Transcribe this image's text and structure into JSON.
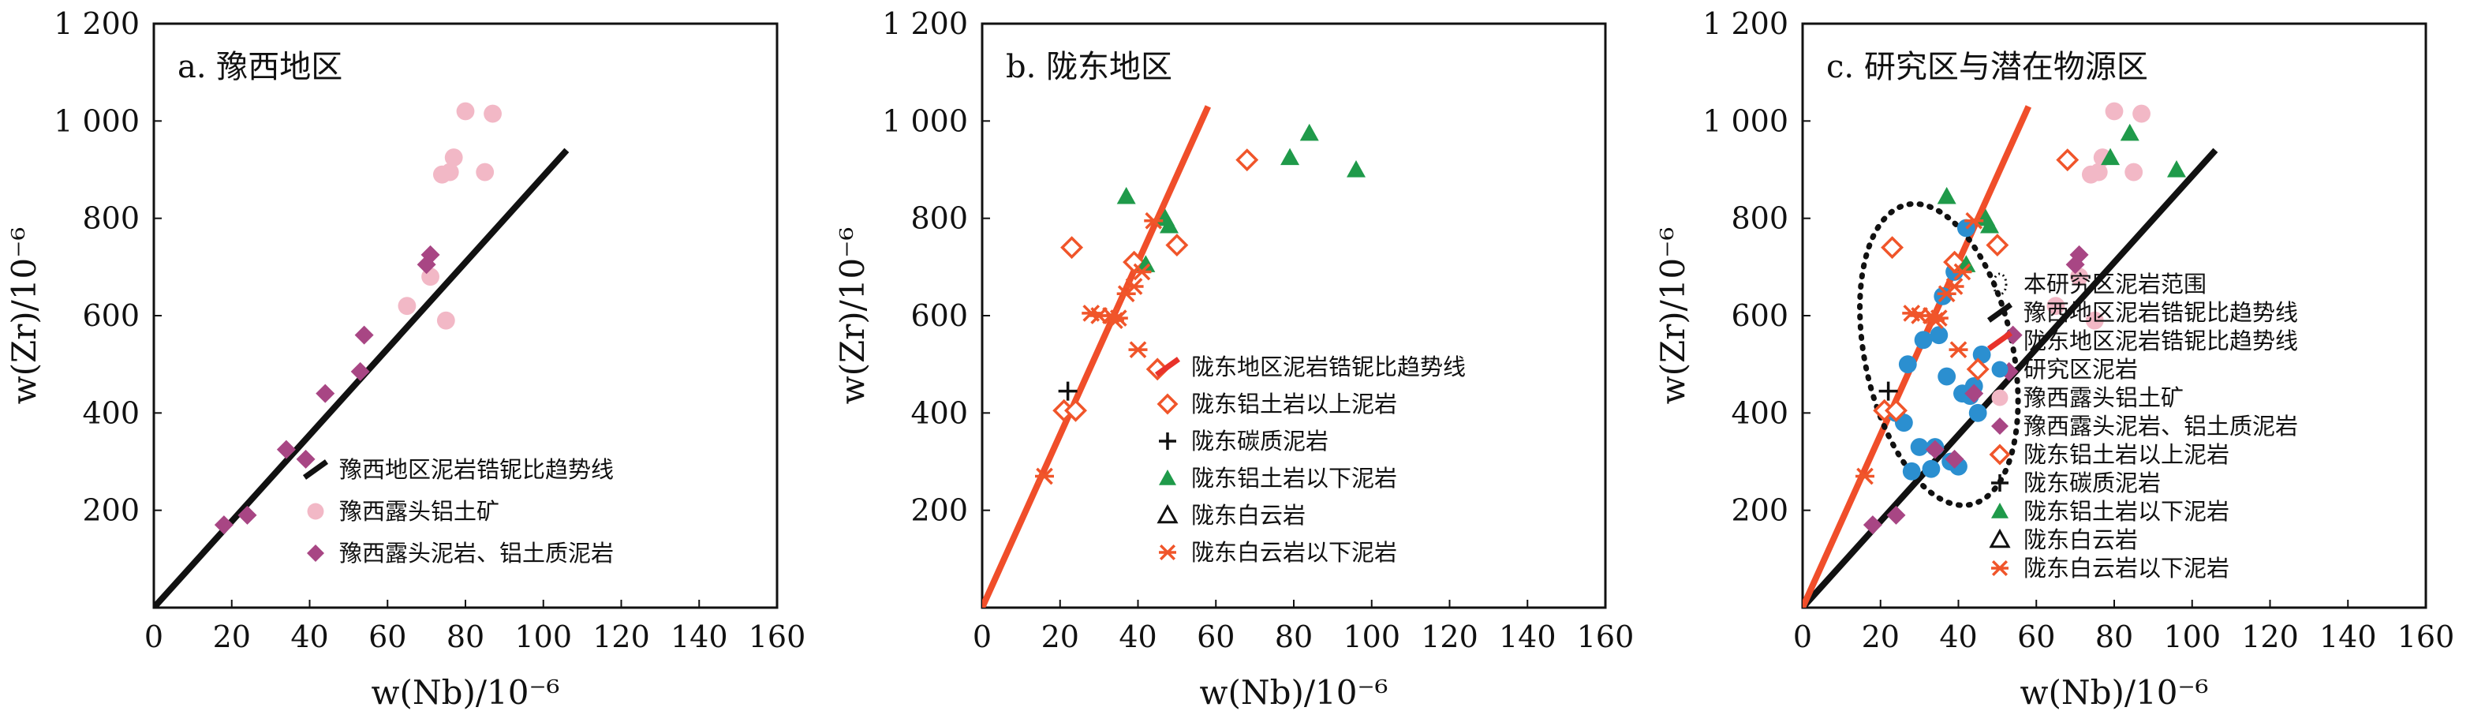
{
  "chart_data": [
    {
      "type": "scatter",
      "panel_title": "a. 豫西地区",
      "xlabel": "w(Nb)/10⁻⁶",
      "ylabel": "w(Zr)/10⁻⁶",
      "xlim": [
        0,
        160
      ],
      "ylim": [
        0,
        1200
      ],
      "x_ticks": [
        "0",
        "20",
        "40",
        "60",
        "80",
        "100",
        "120",
        "140",
        "160"
      ],
      "y_ticks": [
        "200",
        "400",
        "600",
        "800",
        "1 000",
        "1 200"
      ],
      "legend_position": "bottom-right",
      "legend": [
        {
          "label": "豫西地区泥岩锆铌比趋势线",
          "marker": "black-line"
        },
        {
          "label": "豫西露头铝土矿",
          "marker": "pink-circle"
        },
        {
          "label": "豫西露头泥岩、铝土质泥岩",
          "marker": "purple-diamond"
        }
      ],
      "series": [
        {
          "name": "豫西地区泥岩锆铌比趋势线",
          "kind": "line",
          "color": "#111111",
          "x": [
            0,
            106
          ],
          "y": [
            0,
            940
          ]
        },
        {
          "name": "豫西露头铝土矿",
          "kind": "points",
          "marker": "circle",
          "color": "#f2b8c6",
          "x": [
            80,
            87,
            77,
            76,
            85,
            74,
            71,
            65,
            75
          ],
          "y": [
            1020,
            1015,
            925,
            895,
            895,
            890,
            680,
            620,
            590
          ]
        },
        {
          "name": "豫西露头泥岩、铝土质泥岩",
          "kind": "points",
          "marker": "diamond",
          "color": "#a84684",
          "x": [
            18,
            24,
            34,
            39,
            44,
            53,
            54,
            70,
            71
          ],
          "y": [
            170,
            190,
            325,
            305,
            440,
            485,
            560,
            705,
            725
          ]
        }
      ]
    },
    {
      "type": "scatter",
      "panel_title": "b. 陇东地区",
      "xlabel": "w(Nb)/10⁻⁶",
      "ylabel": "w(Zr)/10⁻⁶",
      "xlim": [
        0,
        160
      ],
      "ylim": [
        0,
        1200
      ],
      "x_ticks": [
        "0",
        "20",
        "40",
        "60",
        "80",
        "100",
        "120",
        "140",
        "160"
      ],
      "y_ticks": [
        "200",
        "400",
        "600",
        "800",
        "1 000",
        "1 200"
      ],
      "legend_position": "bottom-right",
      "legend": [
        {
          "label": "陇东地区泥岩锆铌比趋势线",
          "marker": "red-line"
        },
        {
          "label": "陇东铝土岩以上泥岩",
          "marker": "orange-diamond"
        },
        {
          "label": "陇东碳质泥岩",
          "marker": "black-plus"
        },
        {
          "label": "陇东铝土岩以下泥岩",
          "marker": "green-triangle"
        },
        {
          "label": "陇东白云岩",
          "marker": "open-triangle"
        },
        {
          "label": "陇东白云岩以下泥岩",
          "marker": "orange-asterisk"
        }
      ],
      "series": [
        {
          "name": "陇东地区泥岩锆铌比趋势线",
          "kind": "line",
          "color": "#f04e2a",
          "x": [
            0,
            58
          ],
          "y": [
            0,
            1030
          ]
        },
        {
          "name": "陇东铝土岩以上泥岩",
          "kind": "points",
          "marker": "open-diamond",
          "color": "#f0552a",
          "x": [
            23,
            39,
            50,
            68,
            21,
            24,
            45
          ],
          "y": [
            740,
            710,
            745,
            920,
            405,
            405,
            490
          ]
        },
        {
          "name": "陇东碳质泥岩",
          "kind": "points",
          "marker": "plus",
          "color": "#111111",
          "x": [
            22
          ],
          "y": [
            445
          ]
        },
        {
          "name": "陇东铝土岩以下泥岩",
          "kind": "points",
          "marker": "triangle",
          "color": "#1f9a4a",
          "x": [
            37,
            47,
            48,
            42,
            79,
            84,
            96
          ],
          "y": [
            845,
            800,
            785,
            705,
            925,
            975,
            900
          ]
        },
        {
          "name": "陇东白云岩以下泥岩",
          "kind": "points",
          "marker": "asterisk",
          "color": "#f0552a",
          "x": [
            16,
            28,
            30,
            34,
            35,
            37,
            39,
            40,
            44,
            33,
            41
          ],
          "y": [
            270,
            605,
            600,
            590,
            595,
            645,
            660,
            530,
            795,
            600,
            690
          ]
        }
      ]
    },
    {
      "type": "scatter",
      "panel_title": "c. 研究区与潜在物源区",
      "xlabel": "w(Nb)/10⁻⁶",
      "ylabel": "w(Zr)/10⁻⁶",
      "xlim": [
        0,
        160
      ],
      "ylim": [
        0,
        1200
      ],
      "x_ticks": [
        "0",
        "20",
        "40",
        "60",
        "80",
        "100",
        "120",
        "140",
        "160"
      ],
      "y_ticks": [
        "200",
        "400",
        "600",
        "800",
        "1 000",
        "1 200"
      ],
      "legend_position": "bottom-right",
      "legend": [
        {
          "label": "本研究区泥岩范围",
          "marker": "dotted-ellipse"
        },
        {
          "label": "豫西地区泥岩锆铌比趋势线",
          "marker": "black-line"
        },
        {
          "label": "陇东地区泥岩锆铌比趋势线",
          "marker": "red-line"
        },
        {
          "label": "研究区泥岩",
          "marker": "blue-circle"
        },
        {
          "label": "豫西露头铝土矿",
          "marker": "pink-circle"
        },
        {
          "label": "豫西露头泥岩、铝土质泥岩",
          "marker": "purple-diamond"
        },
        {
          "label": "陇东铝土岩以上泥岩",
          "marker": "orange-diamond"
        },
        {
          "label": "陇东碳质泥岩",
          "marker": "black-plus"
        },
        {
          "label": "陇东铝土岩以下泥岩",
          "marker": "green-triangle"
        },
        {
          "label": "陇东白云岩",
          "marker": "open-triangle"
        },
        {
          "label": "陇东白云岩以下泥岩",
          "marker": "orange-asterisk"
        }
      ],
      "series": [
        {
          "name": "豫西地区泥岩锆铌比趋势线",
          "kind": "line",
          "color": "#111111",
          "x": [
            0,
            106
          ],
          "y": [
            0,
            940
          ]
        },
        {
          "name": "陇东地区泥岩锆铌比趋势线",
          "kind": "line",
          "color": "#f04e2a",
          "x": [
            0,
            58
          ],
          "y": [
            0,
            1030
          ]
        },
        {
          "name": "本研究区泥岩范围",
          "kind": "ellipse",
          "color": "#111111",
          "cx": 35,
          "cy": 520,
          "rx": 19,
          "ry": 315,
          "rotate": -12
        },
        {
          "name": "研究区泥岩",
          "kind": "points",
          "marker": "circle",
          "color": "#2b8fd0",
          "x": [
            24,
            27,
            28,
            33,
            34,
            36,
            37,
            38,
            39,
            41,
            42,
            43,
            44,
            45,
            46,
            31,
            35,
            40,
            30,
            26
          ],
          "y": [
            400,
            500,
            280,
            285,
            330,
            640,
            475,
            300,
            690,
            440,
            780,
            435,
            455,
            400,
            520,
            550,
            560,
            290,
            330,
            380
          ]
        },
        {
          "name": "豫西露头铝土矿",
          "kind": "points",
          "marker": "circle",
          "color": "#f2b8c6",
          "x": [
            80,
            87,
            77,
            76,
            85,
            74,
            71,
            65,
            75
          ],
          "y": [
            1020,
            1015,
            925,
            895,
            895,
            890,
            680,
            620,
            590
          ]
        },
        {
          "name": "豫西露头泥岩、铝土质泥岩",
          "kind": "points",
          "marker": "diamond",
          "color": "#a84684",
          "x": [
            18,
            24,
            34,
            39,
            44,
            53,
            54,
            70,
            71
          ],
          "y": [
            170,
            190,
            325,
            305,
            440,
            485,
            560,
            705,
            725
          ]
        },
        {
          "name": "陇东铝土岩以上泥岩",
          "kind": "points",
          "marker": "open-diamond",
          "color": "#f0552a",
          "x": [
            23,
            39,
            50,
            68,
            21,
            24,
            45
          ],
          "y": [
            740,
            710,
            745,
            920,
            405,
            405,
            490
          ]
        },
        {
          "name": "陇东碳质泥岩",
          "kind": "points",
          "marker": "plus",
          "color": "#111111",
          "x": [
            22
          ],
          "y": [
            445
          ]
        },
        {
          "name": "陇东铝土岩以下泥岩",
          "kind": "points",
          "marker": "triangle",
          "color": "#1f9a4a",
          "x": [
            37,
            47,
            48,
            42,
            79,
            84,
            96
          ],
          "y": [
            845,
            800,
            785,
            705,
            925,
            975,
            900
          ]
        },
        {
          "name": "陇东白云岩以下泥岩",
          "kind": "points",
          "marker": "asterisk",
          "color": "#f0552a",
          "x": [
            16,
            28,
            30,
            34,
            35,
            37,
            39,
            40,
            44,
            33,
            41
          ],
          "y": [
            270,
            605,
            600,
            590,
            595,
            645,
            660,
            530,
            795,
            600,
            690
          ]
        }
      ]
    }
  ]
}
